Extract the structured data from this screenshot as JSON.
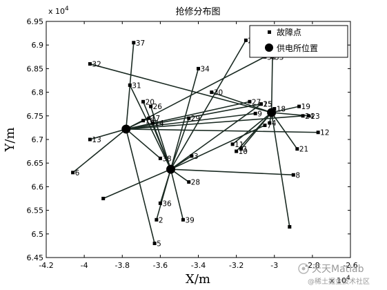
{
  "chart_data": {
    "type": "scatter",
    "title": "抢修分布图",
    "xlabel": "X/m",
    "ylabel": "Y/m",
    "xlim": [
      -4.2,
      -2.6
    ],
    "ylim": [
      6.45,
      6.95
    ],
    "x_multiplier": "x 10",
    "x_multiplier_exp": "4",
    "y_multiplier": "x 10",
    "y_multiplier_exp": "4",
    "x_ticks": [
      "-4.2",
      "-4",
      "-3.8",
      "-3.6",
      "-3.4",
      "-3.2",
      "-3",
      "-2.8",
      "-2.6"
    ],
    "y_ticks": [
      "6.45",
      "6.5",
      "6.55",
      "6.6",
      "6.65",
      "6.7",
      "6.75",
      "6.8",
      "6.85",
      "6.9",
      "6.95"
    ],
    "grid": false,
    "legend": {
      "position": "top-right",
      "entries": [
        {
          "label": "故障点",
          "marker": "square"
        },
        {
          "label": "供电所位置",
          "marker": "circle"
        }
      ]
    },
    "stations": [
      {
        "x": -3.78,
        "y": 6.722
      },
      {
        "x": -3.545,
        "y": 6.637
      },
      {
        "x": -3.015,
        "y": 6.757
      }
    ],
    "faults": [
      {
        "id": 1,
        "label": "1",
        "x": -3.175,
        "y": 6.68,
        "station": 2
      },
      {
        "id": 2,
        "label": "2",
        "x": -3.62,
        "y": 6.53,
        "station": 1
      },
      {
        "id": 3,
        "label": "3",
        "x": -3.435,
        "y": 6.665,
        "station": 1
      },
      {
        "id": 4,
        "label": "4",
        "x": -3.025,
        "y": 6.735,
        "station": 2
      },
      {
        "id": 5,
        "label": "5",
        "x": -3.63,
        "y": 6.48,
        "station": 0
      },
      {
        "id": 6,
        "label": "6",
        "x": -4.06,
        "y": 6.63,
        "station": 0
      },
      {
        "id": 7,
        "label": "7",
        "x": -3.05,
        "y": 6.73,
        "station": 1
      },
      {
        "id": 8,
        "label": "8",
        "x": -2.9,
        "y": 6.625,
        "station": 1
      },
      {
        "id": 9,
        "label": "9",
        "x": -3.1,
        "y": 6.755,
        "station": 0
      },
      {
        "id": 10,
        "label": "10",
        "x": -3.2,
        "y": 6.675,
        "station": 2
      },
      {
        "id": 11,
        "label": "11",
        "x": -3.22,
        "y": 6.69,
        "station": 2
      },
      {
        "id": 12,
        "label": "12",
        "x": -2.77,
        "y": 6.715,
        "station": 0
      },
      {
        "id": 13,
        "label": "13",
        "x": -3.97,
        "y": 6.7,
        "station": 0
      },
      {
        "id": 14,
        "label": "14",
        "x": -3.64,
        "y": 6.735,
        "station": 1
      },
      {
        "id": 15,
        "label": "15",
        "x": -3.07,
        "y": 6.775,
        "station": 1
      },
      {
        "id": 16,
        "label": "16",
        "x": -3.69,
        "y": 6.74,
        "station": 0
      },
      {
        "id": 17,
        "label": "17",
        "x": -3.66,
        "y": 6.745,
        "station": 0
      },
      {
        "id": 18,
        "label": "18",
        "x": -3.0,
        "y": 6.765,
        "station": 2
      },
      {
        "id": 19,
        "label": "19",
        "x": -2.87,
        "y": 6.77,
        "station": 2
      },
      {
        "id": 20,
        "label": "20",
        "x": -3.69,
        "y": 6.78,
        "station": 1
      },
      {
        "id": 21,
        "label": "21",
        "x": -2.88,
        "y": 6.68,
        "station": 2
      },
      {
        "id": 22,
        "label": "22",
        "x": -3.15,
        "y": 6.91,
        "station": 1
      },
      {
        "id": 23,
        "label": "23",
        "x": -2.82,
        "y": 6.75,
        "station": 2
      },
      {
        "id": 24,
        "label": "24",
        "x": -2.85,
        "y": 6.75,
        "station": 0
      },
      {
        "id": 25,
        "label": "25",
        "x": -3.07,
        "y": 6.775,
        "station": 0
      },
      {
        "id": 26,
        "label": "26",
        "x": -3.65,
        "y": 6.77,
        "station": 1
      },
      {
        "id": 27,
        "label": "27",
        "x": -3.13,
        "y": 6.78,
        "station": 0
      },
      {
        "id": 28,
        "label": "28",
        "x": -3.45,
        "y": 6.61,
        "station": 1
      },
      {
        "id": 29,
        "label": "29",
        "x": -3.45,
        "y": 6.745,
        "station": 1
      },
      {
        "id": 30,
        "label": "30",
        "x": -3.33,
        "y": 6.8,
        "station": 2
      },
      {
        "id": 31,
        "label": "31",
        "x": -3.76,
        "y": 6.815,
        "station": 1
      },
      {
        "id": 32,
        "label": "32",
        "x": -3.97,
        "y": 6.86,
        "station": 2
      },
      {
        "id": 33,
        "label": "33",
        "x": -3.01,
        "y": 6.875,
        "station": 2
      },
      {
        "id": 34,
        "label": "34",
        "x": -3.4,
        "y": 6.85,
        "station": 1
      },
      {
        "id": 35,
        "label": "35",
        "x": -3.05,
        "y": 6.875,
        "station": 0
      },
      {
        "id": 36,
        "label": "36",
        "x": -3.6,
        "y": 6.565,
        "station": 1
      },
      {
        "id": 37,
        "label": "37",
        "x": -3.74,
        "y": 6.905,
        "station": 0
      },
      {
        "id": 38,
        "label": "38",
        "x": -3.6,
        "y": 6.66,
        "station": 0
      },
      {
        "id": 39,
        "label": "39",
        "x": -3.48,
        "y": 6.53,
        "station": 1
      },
      {
        "id": 40,
        "label": "",
        "x": -3.9,
        "y": 6.575,
        "station": 1
      },
      {
        "id": 41,
        "label": "",
        "x": -2.92,
        "y": 6.515,
        "station": 2
      }
    ]
  },
  "watermark": {
    "brand": "天天Matlab",
    "sub": "@稀土掘金技术社区"
  },
  "colors": {
    "background": "#ffffff",
    "axes_bg": "#ffffff",
    "line": "#1a2a22",
    "marker": "#000000"
  }
}
